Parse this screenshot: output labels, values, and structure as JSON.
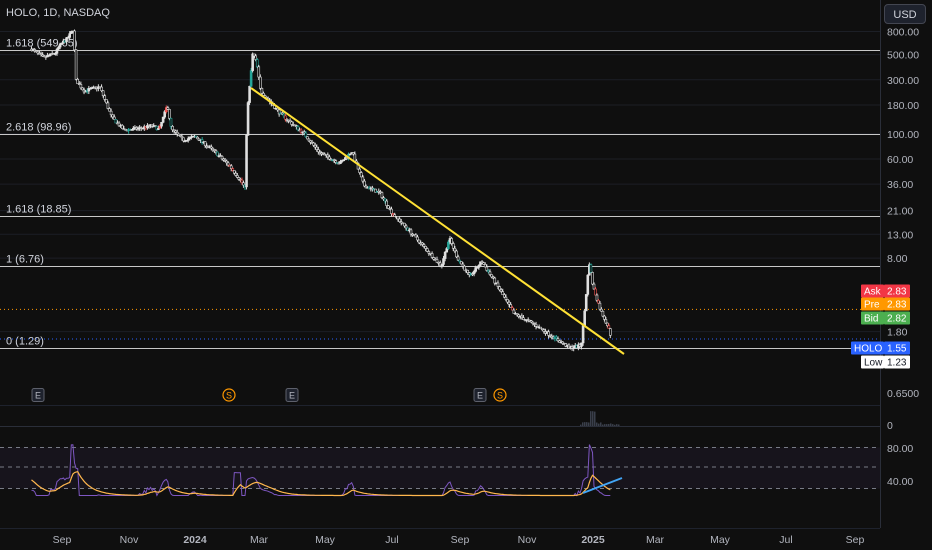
{
  "header": {
    "symbol_title": "HOLO, 1D, NASDAQ"
  },
  "currency_button": "USD",
  "chart_data": {
    "type": "candlestick",
    "symbol": "HOLO",
    "interval": "1D",
    "exchange": "NASDAQ",
    "y_scale": "log",
    "y_ticks": [
      "800.00",
      "500.00",
      "300.00",
      "180.00",
      "100.00",
      "60.00",
      "36.00",
      "21.00",
      "13.00",
      "8.00",
      "1.80",
      "0.6500"
    ],
    "y_tick_values": [
      800,
      500,
      300,
      180,
      100,
      60,
      36,
      21,
      13,
      8,
      1.8,
      0.65
    ],
    "x_ticks": [
      "Sep",
      "Nov",
      "2024",
      "Mar",
      "May",
      "Jul",
      "Sep",
      "Nov",
      "2025",
      "Mar",
      "May",
      "Jul",
      "Sep"
    ],
    "fib_levels": [
      {
        "label": "1.618 (549.65)",
        "value": 549.65
      },
      {
        "label": "2.618 (98.96)",
        "value": 98.96
      },
      {
        "label": "1.618 (18.85)",
        "value": 18.85
      },
      {
        "label": "1 (6.76)",
        "value": 6.76
      },
      {
        "label": "0 (1.29)",
        "value": 1.29
      }
    ],
    "trendline": {
      "start": {
        "date": "2024-03",
        "price": 250
      },
      "end": {
        "date": "2025-01",
        "price": 1.55
      }
    },
    "price_labels": [
      {
        "label": "Ask",
        "value": "2.83",
        "color": "#f23645"
      },
      {
        "label": "Pre",
        "value": "2.83",
        "color": "#ff9800"
      },
      {
        "label": "Bid",
        "value": "2.82",
        "color": "#4caf50"
      },
      {
        "label": "HOLO",
        "value": "1.55",
        "color": "#2962ff"
      },
      {
        "label": "Low",
        "value": "1.23",
        "color": "#ffffff"
      }
    ],
    "events": [
      "E",
      "S",
      "E",
      "E",
      "S"
    ],
    "volume_axis_label": "0",
    "rsi": {
      "ticks": [
        "80.00",
        "40.00"
      ],
      "tick_values": [
        80,
        40
      ]
    },
    "colors": {
      "up": "#26a69a",
      "down": "#ef5350",
      "neutral": "#e0e0e0",
      "trendline": "#ffe135",
      "rsi": "#7e57c2",
      "rsi_ma": "#ffb74d",
      "rsi_trend": "#42a5f5"
    }
  }
}
